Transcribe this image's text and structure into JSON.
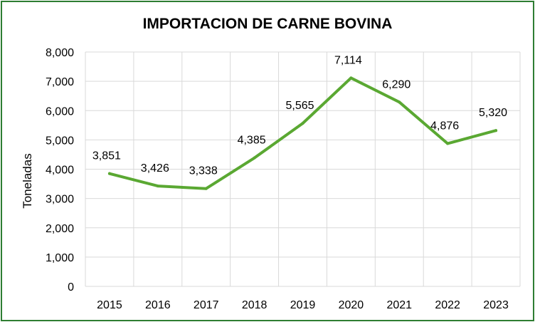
{
  "chart_data": {
    "type": "line",
    "title": "IMPORTACION DE CARNE BOVINA",
    "xlabel": "",
    "ylabel": "Toneladas",
    "categories": [
      "2015",
      "2016",
      "2017",
      "2018",
      "2019",
      "2020",
      "2021",
      "2022",
      "2023"
    ],
    "series": [
      {
        "values": [
          3851,
          3426,
          3338,
          4385,
          5565,
          7114,
          6290,
          4876,
          5320
        ],
        "labels": [
          "3,851",
          "3,426",
          "3,338",
          "4,385",
          "5,565",
          "7,114",
          "6,290",
          "4,876",
          "5,320"
        ]
      }
    ],
    "y_ticks": [
      "0",
      "1,000",
      "2,000",
      "3,000",
      "4,000",
      "5,000",
      "6,000",
      "7,000",
      "8,000"
    ],
    "ylim": [
      0,
      8000
    ],
    "grid": true,
    "legend": "none",
    "colors": {
      "line": "#5aa832",
      "grid": "#d9d9d9",
      "border": "#2e7d32"
    }
  }
}
